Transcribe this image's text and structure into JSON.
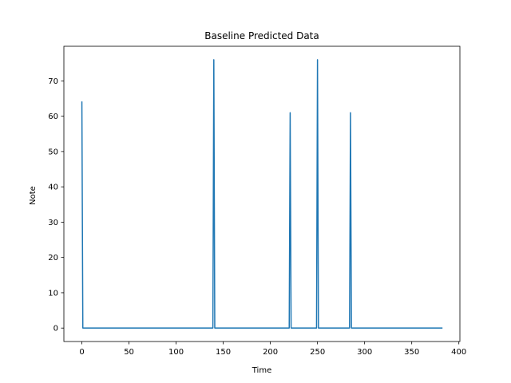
{
  "chart_data": {
    "type": "line",
    "title": "Baseline Predicted Data",
    "xlabel": "Time",
    "ylabel": "Note",
    "xlim": [
      -19.1,
      401.1
    ],
    "ylim": [
      -3.8,
      79.8
    ],
    "xticks": [
      0,
      50,
      100,
      150,
      200,
      250,
      300,
      350,
      400
    ],
    "yticks": [
      0,
      10,
      20,
      30,
      40,
      50,
      60,
      70
    ],
    "grid": false,
    "legend": "none",
    "series": [
      {
        "color": "#1f77b4",
        "x": [
          0,
          1,
          139,
          140,
          141,
          220,
          221,
          222,
          249,
          250,
          251,
          284,
          285,
          286,
          382
        ],
        "y": [
          64,
          0,
          0,
          76,
          0,
          0,
          61,
          0,
          0,
          76,
          0,
          0,
          61,
          0,
          0
        ]
      }
    ]
  }
}
